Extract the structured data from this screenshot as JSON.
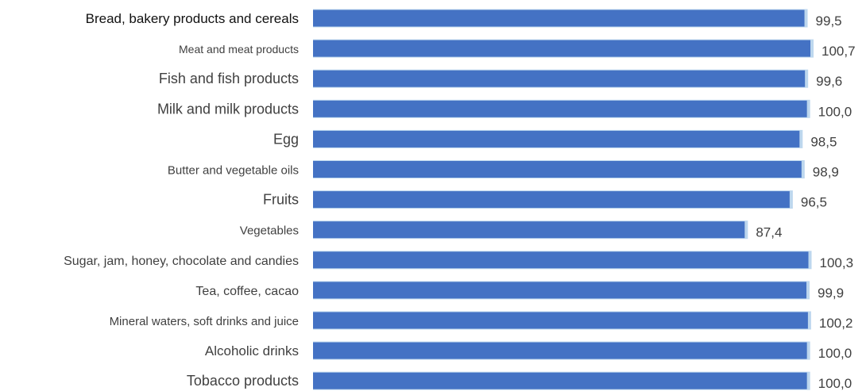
{
  "chart_data": {
    "type": "bar",
    "orientation": "horizontal",
    "categories": [
      "Bread, bakery products and cereals",
      "Meat and meat products",
      "Fish and fish products",
      "Milk and milk products",
      "Egg",
      "Butter and vegetable oils",
      "Fruits",
      "Vegetables",
      "Sugar, jam, honey, chocolate and candies",
      "Tea, coffee, cacao",
      "Mineral waters, soft drinks and juice",
      "Alcoholic drinks",
      "Tobacco products"
    ],
    "values": [
      99.5,
      100.7,
      99.6,
      100.0,
      98.5,
      98.9,
      96.5,
      87.4,
      100.3,
      99.9,
      100.2,
      100.0,
      100.0
    ],
    "value_labels": [
      "99,5",
      "100,7",
      "99,6",
      "100,0",
      "98,5",
      "98,9",
      "96,5",
      "87,4",
      "100,3",
      "99,9",
      "100,2",
      "100,0",
      "100,0"
    ],
    "title": "",
    "xlabel": "",
    "ylabel": "",
    "grid": false,
    "legend": "none",
    "bar_color": "#4472C4",
    "bar_highlight_color": "#BDD7EE"
  }
}
